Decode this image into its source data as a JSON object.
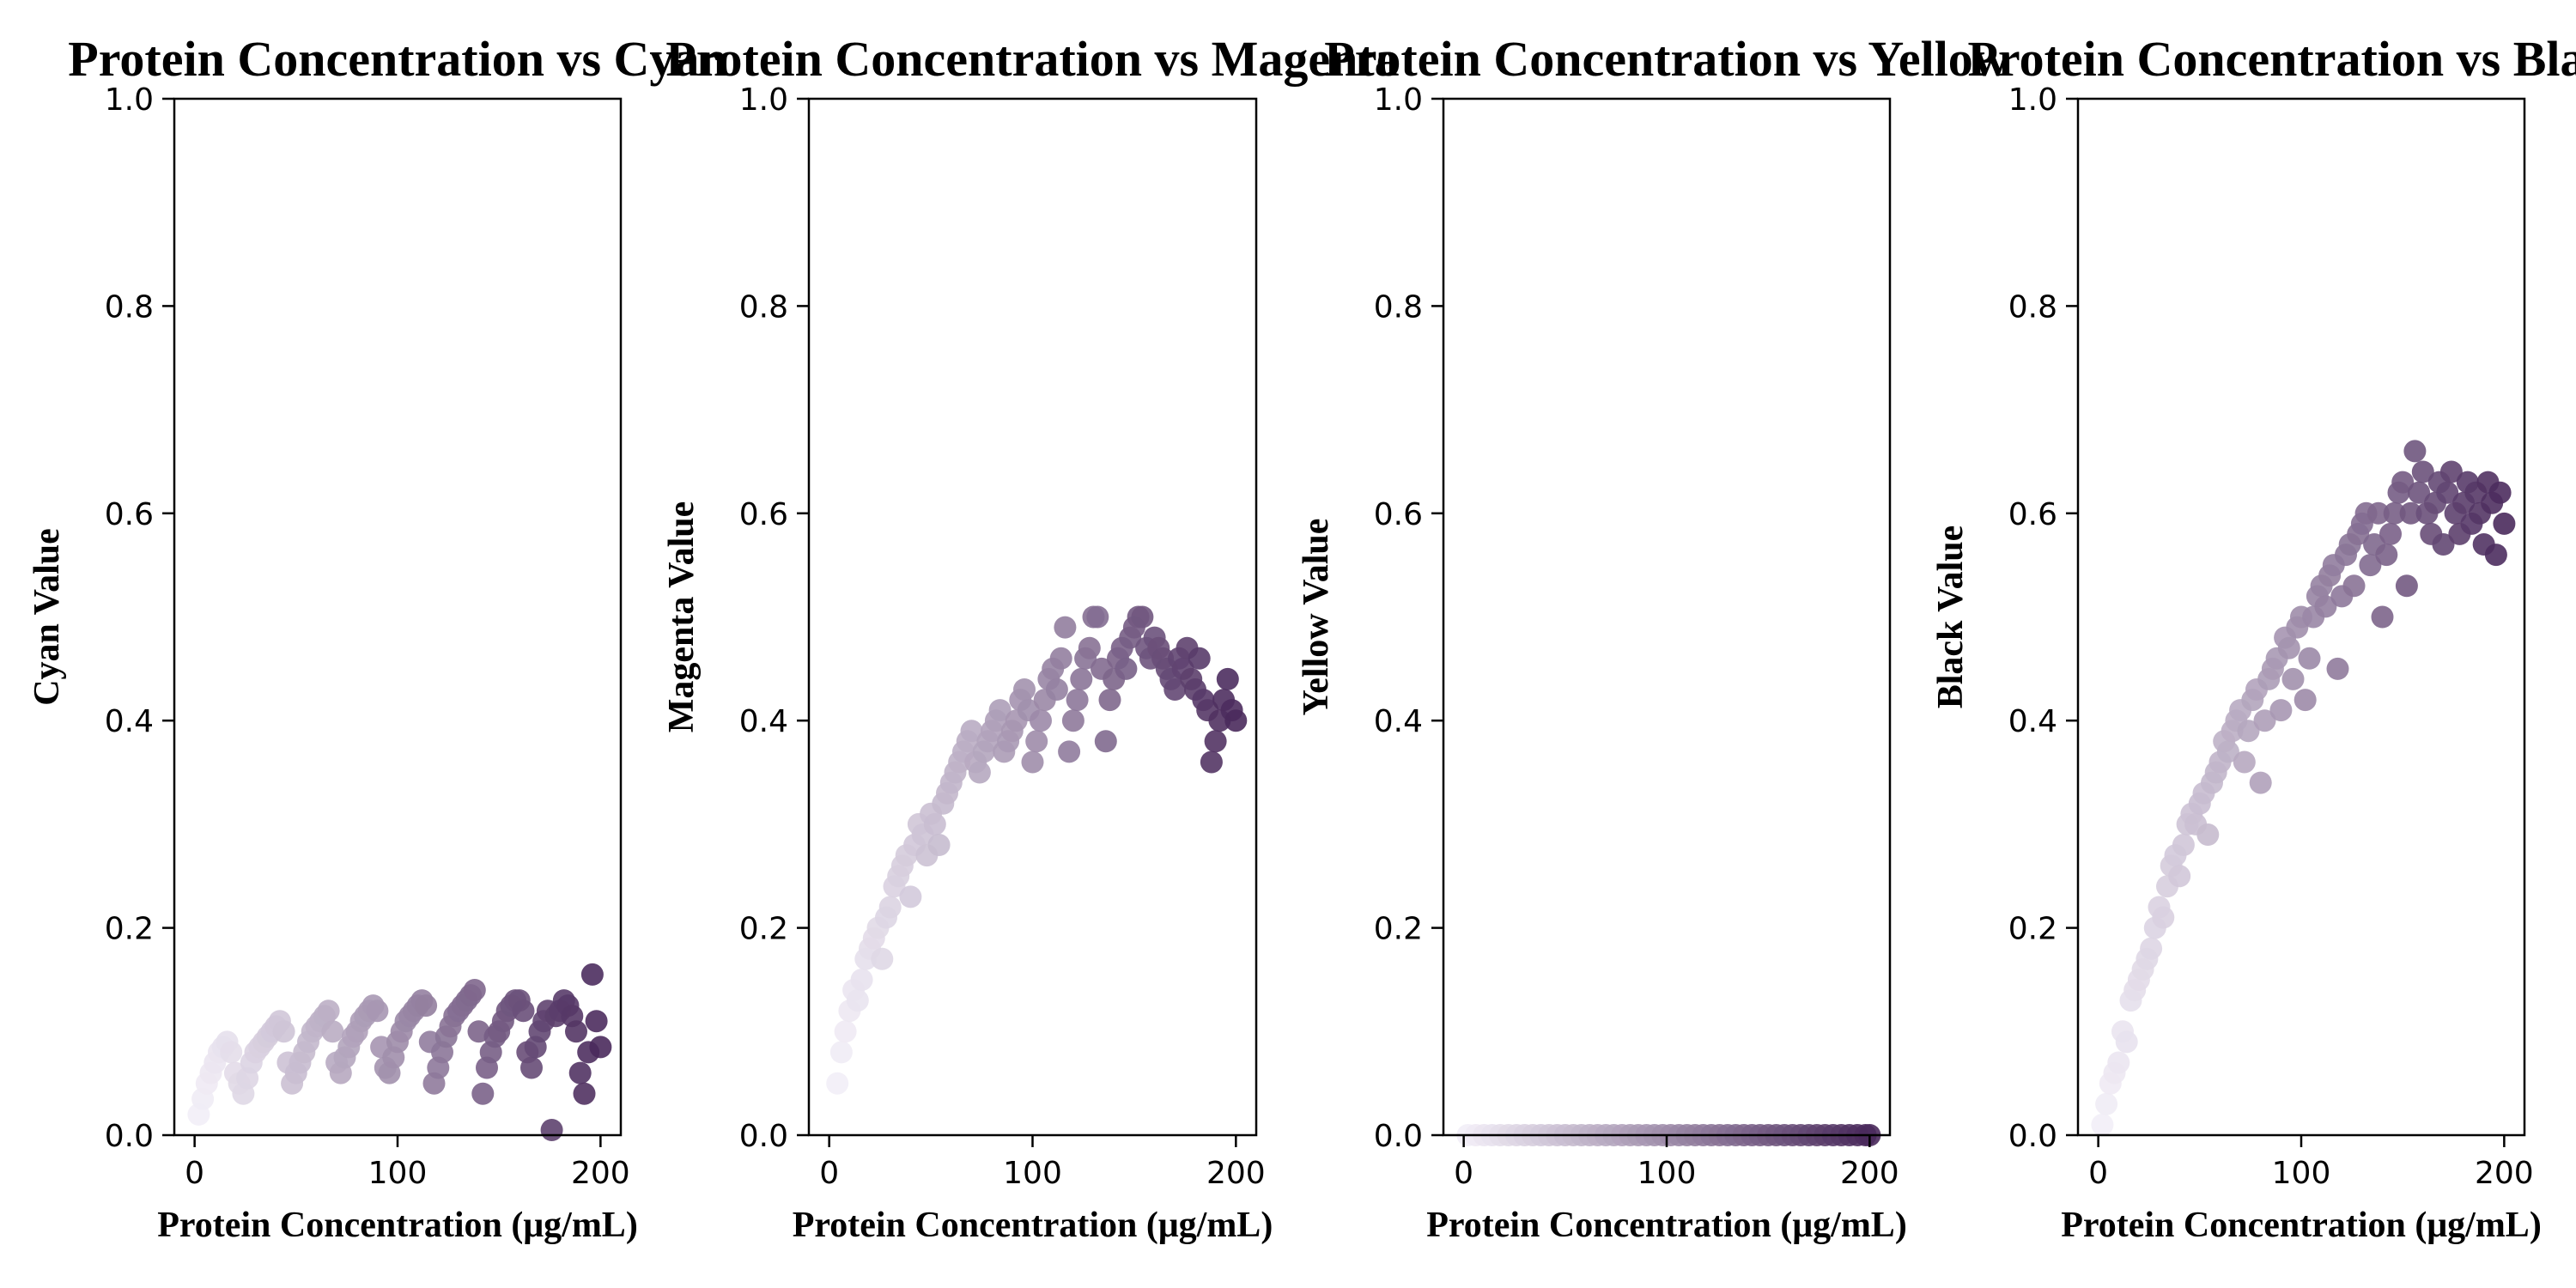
{
  "chart_data": [
    {
      "type": "scatter",
      "title": "Protein Concentration vs Cyan",
      "xlabel": "Protein Concentration (μg/mL)",
      "ylabel": "Cyan Value",
      "xlim": [
        -10,
        210
      ],
      "ylim": [
        0,
        1.0
      ],
      "xticks": [
        "0",
        "100",
        "200"
      ],
      "yticks": [
        "0.0",
        "0.2",
        "0.4",
        "0.6",
        "0.8",
        "1.0"
      ],
      "grid": false,
      "colormap": [
        "#f2eef7",
        "#4a2a5c"
      ],
      "points": [
        [
          2,
          0.02
        ],
        [
          4,
          0.035
        ],
        [
          6,
          0.05
        ],
        [
          8,
          0.06
        ],
        [
          10,
          0.07
        ],
        [
          12,
          0.08
        ],
        [
          14,
          0.085
        ],
        [
          16,
          0.09
        ],
        [
          18,
          0.08
        ],
        [
          20,
          0.06
        ],
        [
          22,
          0.05
        ],
        [
          24,
          0.04
        ],
        [
          26,
          0.055
        ],
        [
          28,
          0.07
        ],
        [
          30,
          0.08
        ],
        [
          32,
          0.085
        ],
        [
          34,
          0.09
        ],
        [
          36,
          0.095
        ],
        [
          38,
          0.1
        ],
        [
          40,
          0.105
        ],
        [
          42,
          0.11
        ],
        [
          44,
          0.1
        ],
        [
          46,
          0.07
        ],
        [
          48,
          0.05
        ],
        [
          50,
          0.06
        ],
        [
          52,
          0.07
        ],
        [
          54,
          0.08
        ],
        [
          56,
          0.09
        ],
        [
          58,
          0.1
        ],
        [
          60,
          0.105
        ],
        [
          62,
          0.11
        ],
        [
          64,
          0.115
        ],
        [
          66,
          0.12
        ],
        [
          68,
          0.1
        ],
        [
          70,
          0.07
        ],
        [
          72,
          0.06
        ],
        [
          74,
          0.075
        ],
        [
          76,
          0.085
        ],
        [
          78,
          0.095
        ],
        [
          80,
          0.1
        ],
        [
          82,
          0.11
        ],
        [
          84,
          0.115
        ],
        [
          86,
          0.12
        ],
        [
          88,
          0.125
        ],
        [
          90,
          0.12
        ],
        [
          92,
          0.085
        ],
        [
          94,
          0.065
        ],
        [
          96,
          0.06
        ],
        [
          98,
          0.075
        ],
        [
          100,
          0.09
        ],
        [
          102,
          0.1
        ],
        [
          104,
          0.11
        ],
        [
          106,
          0.115
        ],
        [
          108,
          0.12
        ],
        [
          110,
          0.125
        ],
        [
          112,
          0.13
        ],
        [
          114,
          0.125
        ],
        [
          116,
          0.09
        ],
        [
          118,
          0.05
        ],
        [
          120,
          0.065
        ],
        [
          122,
          0.08
        ],
        [
          124,
          0.095
        ],
        [
          126,
          0.105
        ],
        [
          128,
          0.115
        ],
        [
          130,
          0.12
        ],
        [
          132,
          0.125
        ],
        [
          134,
          0.13
        ],
        [
          136,
          0.135
        ],
        [
          138,
          0.14
        ],
        [
          140,
          0.1
        ],
        [
          142,
          0.04
        ],
        [
          144,
          0.065
        ],
        [
          146,
          0.08
        ],
        [
          148,
          0.095
        ],
        [
          150,
          0.1
        ],
        [
          152,
          0.11
        ],
        [
          154,
          0.12
        ],
        [
          156,
          0.125
        ],
        [
          158,
          0.13
        ],
        [
          160,
          0.13
        ],
        [
          162,
          0.12
        ],
        [
          164,
          0.08
        ],
        [
          166,
          0.065
        ],
        [
          168,
          0.085
        ],
        [
          170,
          0.1
        ],
        [
          172,
          0.11
        ],
        [
          174,
          0.12
        ],
        [
          176,
          0.005
        ],
        [
          178,
          0.115
        ],
        [
          180,
          0.12
        ],
        [
          182,
          0.13
        ],
        [
          184,
          0.125
        ],
        [
          186,
          0.115
        ],
        [
          188,
          0.1
        ],
        [
          190,
          0.06
        ],
        [
          192,
          0.04
        ],
        [
          194,
          0.08
        ],
        [
          196,
          0.155
        ],
        [
          198,
          0.11
        ],
        [
          200,
          0.085
        ]
      ]
    },
    {
      "type": "scatter",
      "title": "Protein Concentration vs Magenta",
      "xlabel": "Protein Concentration (μg/mL)",
      "ylabel": "Magenta Value",
      "xlim": [
        -10,
        210
      ],
      "ylim": [
        0,
        1.0
      ],
      "xticks": [
        "0",
        "100",
        "200"
      ],
      "yticks": [
        "0.0",
        "0.2",
        "0.4",
        "0.6",
        "0.8",
        "1.0"
      ],
      "grid": false,
      "colormap": [
        "#f2eef7",
        "#4a2a5c"
      ],
      "points": [
        [
          4,
          0.05
        ],
        [
          6,
          0.08
        ],
        [
          8,
          0.1
        ],
        [
          10,
          0.12
        ],
        [
          12,
          0.14
        ],
        [
          14,
          0.13
        ],
        [
          16,
          0.15
        ],
        [
          18,
          0.17
        ],
        [
          20,
          0.18
        ],
        [
          22,
          0.19
        ],
        [
          24,
          0.2
        ],
        [
          26,
          0.17
        ],
        [
          28,
          0.21
        ],
        [
          30,
          0.22
        ],
        [
          32,
          0.24
        ],
        [
          34,
          0.25
        ],
        [
          36,
          0.26
        ],
        [
          38,
          0.27
        ],
        [
          40,
          0.23
        ],
        [
          42,
          0.28
        ],
        [
          44,
          0.3
        ],
        [
          46,
          0.29
        ],
        [
          48,
          0.27
        ],
        [
          50,
          0.31
        ],
        [
          52,
          0.3
        ],
        [
          54,
          0.28
        ],
        [
          56,
          0.32
        ],
        [
          58,
          0.33
        ],
        [
          60,
          0.34
        ],
        [
          62,
          0.35
        ],
        [
          64,
          0.36
        ],
        [
          66,
          0.37
        ],
        [
          68,
          0.38
        ],
        [
          70,
          0.39
        ],
        [
          72,
          0.36
        ],
        [
          74,
          0.35
        ],
        [
          76,
          0.37
        ],
        [
          78,
          0.38
        ],
        [
          80,
          0.39
        ],
        [
          82,
          0.4
        ],
        [
          84,
          0.41
        ],
        [
          86,
          0.37
        ],
        [
          88,
          0.38
        ],
        [
          90,
          0.39
        ],
        [
          92,
          0.4
        ],
        [
          94,
          0.42
        ],
        [
          96,
          0.43
        ],
        [
          98,
          0.41
        ],
        [
          100,
          0.36
        ],
        [
          102,
          0.38
        ],
        [
          104,
          0.4
        ],
        [
          106,
          0.42
        ],
        [
          108,
          0.44
        ],
        [
          110,
          0.45
        ],
        [
          112,
          0.43
        ],
        [
          114,
          0.46
        ],
        [
          116,
          0.49
        ],
        [
          118,
          0.37
        ],
        [
          120,
          0.4
        ],
        [
          122,
          0.42
        ],
        [
          124,
          0.44
        ],
        [
          126,
          0.46
        ],
        [
          128,
          0.47
        ],
        [
          130,
          0.5
        ],
        [
          132,
          0.5
        ],
        [
          134,
          0.45
        ],
        [
          136,
          0.38
        ],
        [
          138,
          0.42
        ],
        [
          140,
          0.44
        ],
        [
          142,
          0.46
        ],
        [
          144,
          0.47
        ],
        [
          146,
          0.45
        ],
        [
          148,
          0.48
        ],
        [
          150,
          0.49
        ],
        [
          152,
          0.5
        ],
        [
          154,
          0.5
        ],
        [
          156,
          0.47
        ],
        [
          158,
          0.46
        ],
        [
          160,
          0.48
        ],
        [
          162,
          0.47
        ],
        [
          164,
          0.46
        ],
        [
          166,
          0.45
        ],
        [
          168,
          0.44
        ],
        [
          170,
          0.43
        ],
        [
          172,
          0.46
        ],
        [
          174,
          0.45
        ],
        [
          176,
          0.47
        ],
        [
          178,
          0.44
        ],
        [
          180,
          0.43
        ],
        [
          182,
          0.46
        ],
        [
          184,
          0.42
        ],
        [
          186,
          0.41
        ],
        [
          188,
          0.36
        ],
        [
          190,
          0.38
        ],
        [
          192,
          0.4
        ],
        [
          194,
          0.42
        ],
        [
          196,
          0.44
        ],
        [
          198,
          0.41
        ],
        [
          200,
          0.4
        ]
      ]
    },
    {
      "type": "scatter",
      "title": "Protein Concentration vs Yellow",
      "xlabel": "Protein Concentration (μg/mL)",
      "ylabel": "Yellow Value",
      "xlim": [
        -10,
        210
      ],
      "ylim": [
        0,
        1.0
      ],
      "xticks": [
        "0",
        "100",
        "200"
      ],
      "yticks": [
        "0.0",
        "0.2",
        "0.4",
        "0.6",
        "0.8",
        "1.0"
      ],
      "grid": false,
      "colormap": [
        "#f2eef7",
        "#4a2a5c"
      ],
      "points": [
        [
          2,
          0.0
        ],
        [
          6,
          0.0
        ],
        [
          10,
          0.0
        ],
        [
          14,
          0.0
        ],
        [
          18,
          0.0
        ],
        [
          22,
          0.0
        ],
        [
          26,
          0.0
        ],
        [
          30,
          0.0
        ],
        [
          34,
          0.0
        ],
        [
          38,
          0.0
        ],
        [
          42,
          0.0
        ],
        [
          46,
          0.0
        ],
        [
          50,
          0.0
        ],
        [
          54,
          0.0
        ],
        [
          58,
          0.0
        ],
        [
          62,
          0.0
        ],
        [
          66,
          0.0
        ],
        [
          70,
          0.0
        ],
        [
          74,
          0.0
        ],
        [
          78,
          0.0
        ],
        [
          82,
          0.0
        ],
        [
          86,
          0.0
        ],
        [
          90,
          0.0
        ],
        [
          94,
          0.0
        ],
        [
          98,
          0.0
        ],
        [
          102,
          0.0
        ],
        [
          106,
          0.0
        ],
        [
          110,
          0.0
        ],
        [
          114,
          0.0
        ],
        [
          118,
          0.0
        ],
        [
          122,
          0.0
        ],
        [
          126,
          0.0
        ],
        [
          130,
          0.0
        ],
        [
          134,
          0.0
        ],
        [
          138,
          0.0
        ],
        [
          142,
          0.0
        ],
        [
          146,
          0.0
        ],
        [
          150,
          0.0
        ],
        [
          154,
          0.0
        ],
        [
          158,
          0.0
        ],
        [
          162,
          0.0
        ],
        [
          166,
          0.0
        ],
        [
          170,
          0.0
        ],
        [
          174,
          0.0
        ],
        [
          178,
          0.0
        ],
        [
          182,
          0.0
        ],
        [
          186,
          0.0
        ],
        [
          190,
          0.0
        ],
        [
          194,
          0.0
        ],
        [
          198,
          0.0
        ],
        [
          200,
          0.0
        ]
      ]
    },
    {
      "type": "scatter",
      "title": "Protein Concentration vs Black",
      "xlabel": "Protein Concentration (μg/mL)",
      "ylabel": "Black Value",
      "xlim": [
        -10,
        210
      ],
      "ylim": [
        0,
        1.0
      ],
      "xticks": [
        "0",
        "100",
        "200"
      ],
      "yticks": [
        "0.0",
        "0.2",
        "0.4",
        "0.6",
        "0.8",
        "1.0"
      ],
      "grid": false,
      "colormap": [
        "#f2eef7",
        "#4a2a5c"
      ],
      "points": [
        [
          2,
          0.01
        ],
        [
          4,
          0.03
        ],
        [
          6,
          0.05
        ],
        [
          8,
          0.06
        ],
        [
          10,
          0.07
        ],
        [
          12,
          0.1
        ],
        [
          14,
          0.09
        ],
        [
          16,
          0.13
        ],
        [
          18,
          0.14
        ],
        [
          20,
          0.15
        ],
        [
          22,
          0.16
        ],
        [
          24,
          0.17
        ],
        [
          26,
          0.18
        ],
        [
          28,
          0.2
        ],
        [
          30,
          0.22
        ],
        [
          32,
          0.21
        ],
        [
          34,
          0.24
        ],
        [
          36,
          0.26
        ],
        [
          38,
          0.27
        ],
        [
          40,
          0.25
        ],
        [
          42,
          0.28
        ],
        [
          44,
          0.3
        ],
        [
          46,
          0.31
        ],
        [
          48,
          0.3
        ],
        [
          50,
          0.32
        ],
        [
          52,
          0.33
        ],
        [
          54,
          0.29
        ],
        [
          56,
          0.34
        ],
        [
          58,
          0.35
        ],
        [
          60,
          0.36
        ],
        [
          62,
          0.38
        ],
        [
          64,
          0.37
        ],
        [
          66,
          0.39
        ],
        [
          68,
          0.4
        ],
        [
          70,
          0.41
        ],
        [
          72,
          0.36
        ],
        [
          74,
          0.39
        ],
        [
          76,
          0.42
        ],
        [
          78,
          0.43
        ],
        [
          80,
          0.34
        ],
        [
          82,
          0.4
        ],
        [
          84,
          0.44
        ],
        [
          86,
          0.45
        ],
        [
          88,
          0.46
        ],
        [
          90,
          0.41
        ],
        [
          92,
          0.48
        ],
        [
          94,
          0.47
        ],
        [
          96,
          0.44
        ],
        [
          98,
          0.49
        ],
        [
          100,
          0.5
        ],
        [
          102,
          0.42
        ],
        [
          104,
          0.46
        ],
        [
          106,
          0.5
        ],
        [
          108,
          0.52
        ],
        [
          110,
          0.53
        ],
        [
          112,
          0.51
        ],
        [
          114,
          0.54
        ],
        [
          116,
          0.55
        ],
        [
          118,
          0.45
        ],
        [
          120,
          0.52
        ],
        [
          122,
          0.56
        ],
        [
          124,
          0.57
        ],
        [
          126,
          0.53
        ],
        [
          128,
          0.58
        ],
        [
          130,
          0.59
        ],
        [
          132,
          0.6
        ],
        [
          134,
          0.55
        ],
        [
          136,
          0.57
        ],
        [
          138,
          0.6
        ],
        [
          140,
          0.5
        ],
        [
          142,
          0.56
        ],
        [
          144,
          0.58
        ],
        [
          146,
          0.6
        ],
        [
          148,
          0.62
        ],
        [
          150,
          0.63
        ],
        [
          152,
          0.53
        ],
        [
          154,
          0.6
        ],
        [
          156,
          0.66
        ],
        [
          158,
          0.62
        ],
        [
          160,
          0.64
        ],
        [
          162,
          0.6
        ],
        [
          164,
          0.58
        ],
        [
          166,
          0.61
        ],
        [
          168,
          0.63
        ],
        [
          170,
          0.57
        ],
        [
          172,
          0.62
        ],
        [
          174,
          0.64
        ],
        [
          176,
          0.6
        ],
        [
          178,
          0.58
        ],
        [
          180,
          0.61
        ],
        [
          182,
          0.63
        ],
        [
          184,
          0.59
        ],
        [
          186,
          0.62
        ],
        [
          188,
          0.6
        ],
        [
          190,
          0.57
        ],
        [
          192,
          0.63
        ],
        [
          194,
          0.61
        ],
        [
          196,
          0.56
        ],
        [
          198,
          0.62
        ],
        [
          200,
          0.59
        ]
      ]
    }
  ]
}
